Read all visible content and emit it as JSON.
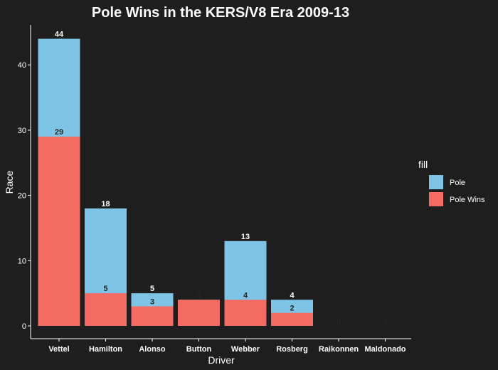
{
  "chart_data": {
    "type": "bar",
    "stacked": "overlay",
    "title": "Pole Wins in the KERS/V8 Era 2009-13",
    "xlabel": "Driver",
    "ylabel": "Race",
    "ylim": [
      0,
      46
    ],
    "yticks": [
      "0",
      "10",
      "20",
      "30",
      "40"
    ],
    "categories": [
      "Vettel",
      "Hamilton",
      "Alonso",
      "Button",
      "Webber",
      "Rosberg",
      "Raikonnen",
      "Maldonado"
    ],
    "series": [
      {
        "name": "Pole",
        "color": "#7ec4e6",
        "values": [
          44,
          18,
          5,
          4,
          13,
          4,
          0,
          0
        ]
      },
      {
        "name": "Pole Wins",
        "color": "#f46b61",
        "values": [
          29,
          5,
          3,
          4,
          4,
          2,
          0,
          0
        ]
      }
    ],
    "legend": {
      "title": "fill",
      "position": "right"
    },
    "grid": false,
    "background": "#1e1e1e",
    "axis_color": "#ffffff"
  }
}
